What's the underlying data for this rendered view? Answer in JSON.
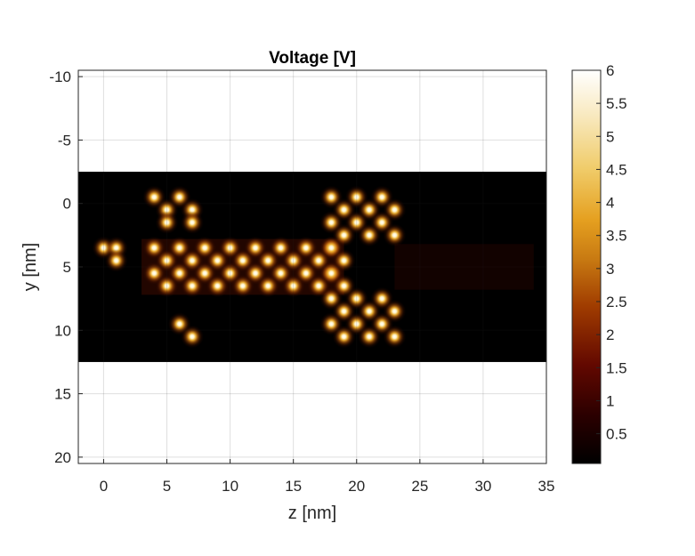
{
  "chart_data": {
    "type": "heatmap",
    "title": "Voltage [V]",
    "xlabel": "z [nm]",
    "ylabel": "y [nm]",
    "xlim": [
      -2,
      35
    ],
    "ylim": [
      -10.5,
      20.5
    ],
    "y_direction": "reversed",
    "grid": true,
    "x_ticks": [
      0,
      5,
      10,
      15,
      20,
      25,
      30,
      35
    ],
    "x_tick_labels": [
      "0",
      "5",
      "10",
      "15",
      "20",
      "25",
      "30",
      "35"
    ],
    "y_ticks": [
      -10,
      -5,
      0,
      5,
      10,
      15,
      20
    ],
    "y_tick_labels": [
      "-10",
      "-5",
      "0",
      "5",
      "10",
      "15",
      "20"
    ],
    "data_region": {
      "z_range": [
        -2,
        35
      ],
      "y_range": [
        -2.5,
        12.5
      ]
    },
    "colormap": "afmhot",
    "colorbar": {
      "range": [
        0.05,
        6
      ],
      "ticks": [
        0.5,
        1,
        1.5,
        2,
        2.5,
        3,
        3.5,
        4,
        4.5,
        5,
        5.5,
        6
      ],
      "tick_labels": [
        "0.5",
        "1",
        "1.5",
        "2",
        "2.5",
        "3",
        "3.5",
        "4",
        "4.5",
        "5",
        "5.5",
        "6"
      ]
    },
    "point_groups": [
      {
        "name": "top-left cluster",
        "z": [
          4,
          6,
          5,
          7,
          5,
          7
        ],
        "y": [
          -0.5,
          -0.5,
          0.5,
          0.5,
          1.5,
          1.5
        ]
      },
      {
        "name": "left pair",
        "z": [
          0,
          1,
          1
        ],
        "y": [
          3.5,
          3.5,
          4.5
        ]
      },
      {
        "name": "bottom-left pair",
        "z": [
          6,
          7
        ],
        "y": [
          9.5,
          10.5
        ]
      },
      {
        "name": "central arm",
        "z_range": [
          4,
          18
        ],
        "rows_y": [
          3.5,
          4.5,
          5.5,
          6.5
        ],
        "spacing": 1
      },
      {
        "name": "right upper block",
        "z_range": [
          18,
          23
        ],
        "rows_y": [
          -0.5,
          0.5,
          1.5,
          2.5
        ],
        "spacing": 1
      },
      {
        "name": "right lower block",
        "z_range": [
          18,
          23
        ],
        "rows_y": [
          7.5,
          8.5,
          9.5,
          10.5
        ],
        "spacing": 1
      },
      {
        "name": "right connector",
        "z_range": [
          18,
          19
        ],
        "rows_y": [
          3.5,
          4.5,
          5.5,
          6.5
        ],
        "spacing": 1
      }
    ],
    "peak_voltage_approx": 5.0
  }
}
